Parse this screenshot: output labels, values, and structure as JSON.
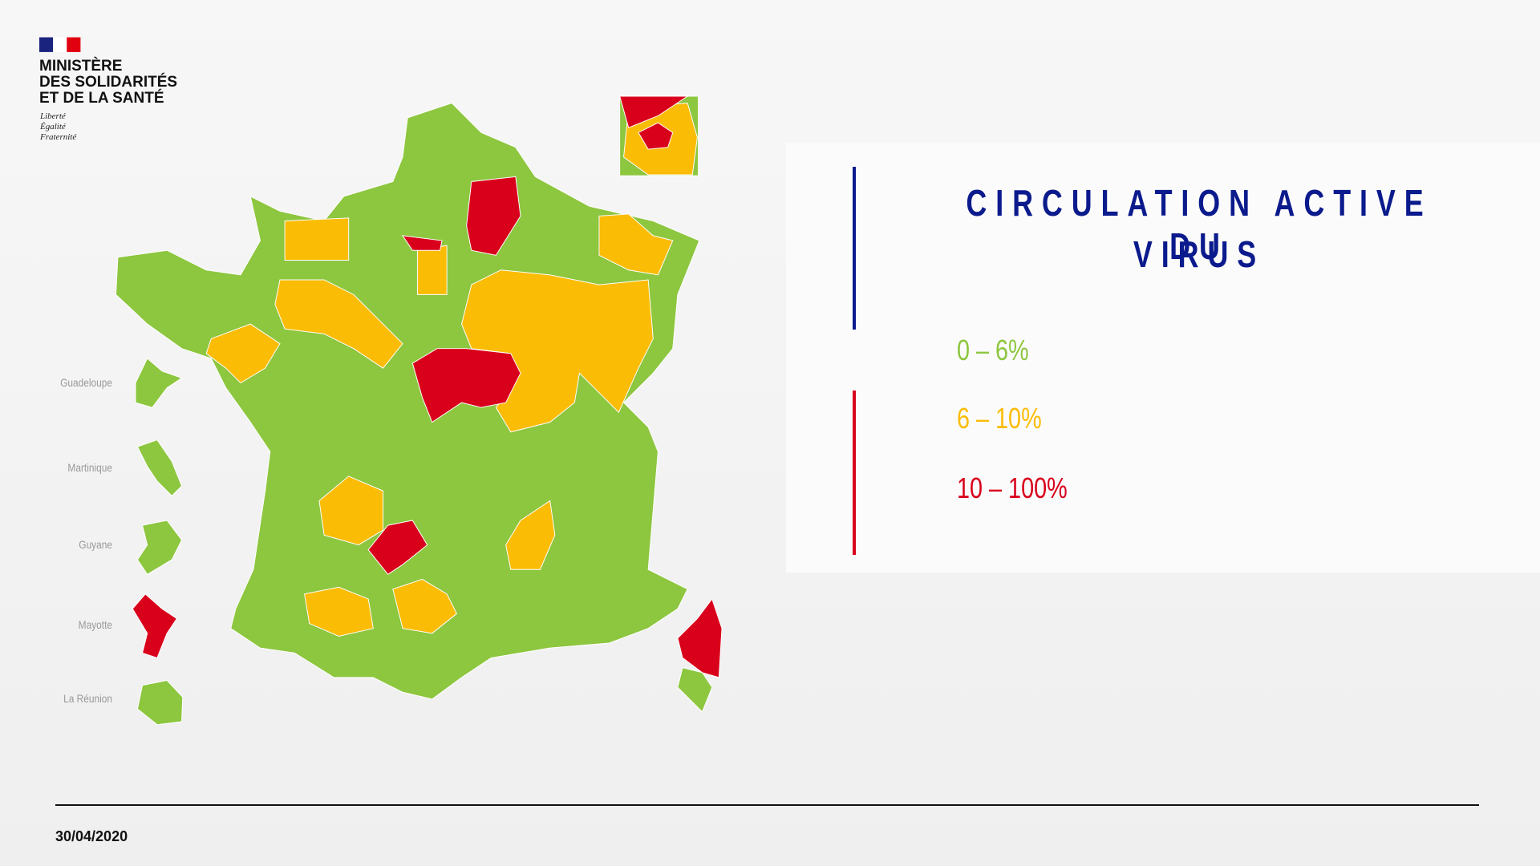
{
  "header": {
    "ministry": [
      "MINISTÈRE",
      "DES SOLIDARITÉS",
      "ET DE LA SANTÉ"
    ],
    "motto": [
      "Liberté",
      "Égalité",
      "Fraternité"
    ]
  },
  "title": [
    "CIRCULATION ACTIVE DU",
    "VIRUS"
  ],
  "legend": [
    {
      "label": "0 – 6%",
      "color": "#8dc63f"
    },
    {
      "label": "6 – 10%",
      "color": "#fbbc05"
    },
    {
      "label": "10 – 100%",
      "color": "#d9001b"
    }
  ],
  "overseas": [
    "Guadeloupe",
    "Martinique",
    "Guyane",
    "Mayotte",
    "La Réunion"
  ],
  "footer": {
    "date": "30/04/2020"
  }
}
